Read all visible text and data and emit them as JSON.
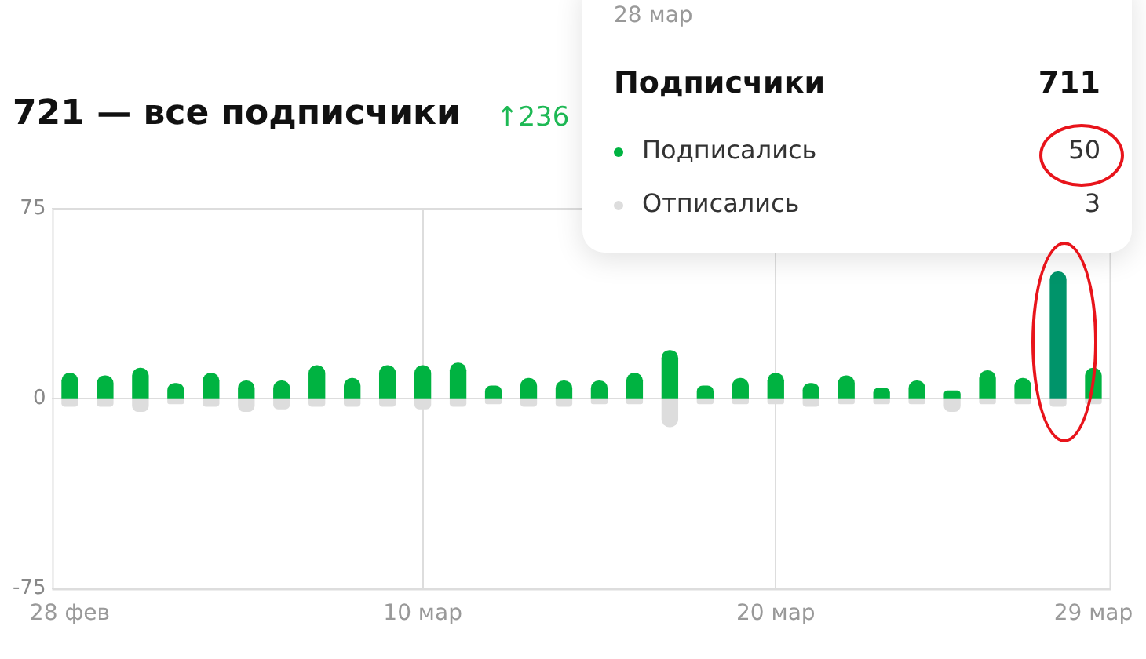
{
  "chart_data": {
    "type": "bar",
    "title": "721 — все подписчики",
    "subtitle": "↑236",
    "categories": [
      "28 фев",
      null,
      null,
      null,
      null,
      null,
      null,
      null,
      null,
      null,
      "10 мар",
      null,
      null,
      null,
      null,
      null,
      null,
      null,
      null,
      null,
      "20 мар",
      null,
      null,
      null,
      null,
      null,
      null,
      null,
      null,
      "29 мар"
    ],
    "series": [
      {
        "name": "Подписались",
        "color": "#00b341",
        "colors": [
          "#00b341",
          "#00b341",
          "#00b341",
          "#00b341",
          "#00b341",
          "#00b341",
          "#00b341",
          "#00b341",
          "#00b341",
          "#00b341",
          "#00b341",
          "#00b341",
          "#00b341",
          "#00b341",
          "#00b341",
          "#00b341",
          "#00b341",
          "#00b341",
          "#00b341",
          "#00b341",
          "#00b341",
          "#00b341",
          "#00b341",
          "#00b341",
          "#00b341",
          "#00b341",
          "#00b341",
          "#00b341",
          "#00946a",
          "#00b341"
        ],
        "values": [
          10,
          9,
          12,
          6,
          10,
          7,
          7,
          13,
          8,
          13,
          13,
          14,
          5,
          8,
          7,
          7,
          10,
          19,
          5,
          8,
          10,
          6,
          9,
          4,
          7,
          3,
          11,
          8,
          50,
          12
        ]
      },
      {
        "name": "Отписались",
        "color": "#dddddd",
        "values": [
          -3,
          -3,
          -5,
          -2,
          -3,
          -5,
          -4,
          -3,
          -3,
          -3,
          -4,
          -3,
          -2,
          -3,
          -3,
          -2,
          -2,
          -11,
          -2,
          -2,
          -2,
          -3,
          -2,
          -2,
          -2,
          -5,
          -2,
          -2,
          -3,
          -2
        ]
      }
    ],
    "stacked": true,
    "ylim": [
      -75,
      75
    ],
    "yticks": [
      -75,
      0,
      75
    ],
    "grid": true,
    "legend": "top right",
    "annotations": [
      "28 мар",
      "Подписчики",
      "711",
      "50",
      "3"
    ]
  }
}
